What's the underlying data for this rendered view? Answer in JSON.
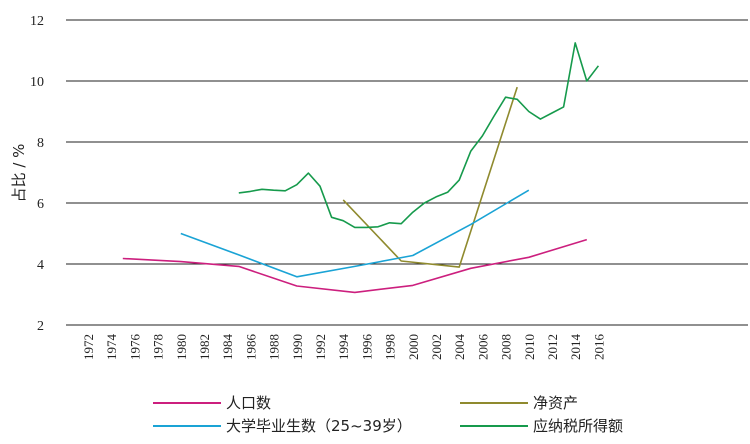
{
  "chart_data": {
    "type": "line",
    "title": "",
    "ylabel": "占比 / %",
    "xlabel": "",
    "ylim": [
      2,
      12
    ],
    "yticks": [
      2,
      4,
      6,
      8,
      10,
      12
    ],
    "xlim": [
      1972,
      2017
    ],
    "xticks": [
      "1972",
      "1974",
      "1976",
      "1978",
      "1980",
      "1982",
      "1984",
      "1986",
      "1988",
      "1990",
      "1992",
      "1994",
      "1996",
      "1998",
      "2000",
      "2002",
      "2004",
      "2006",
      "2008",
      "2010",
      "2012",
      "2014",
      "2016"
    ],
    "grid": "horizontal",
    "legend_position": "bottom",
    "series": [
      {
        "name": "人口数",
        "color": "#cc1f7e",
        "points": [
          [
            1975,
            4.18
          ],
          [
            1980,
            4.08
          ],
          [
            1985,
            3.92
          ],
          [
            1990,
            3.28
          ],
          [
            1995,
            3.07
          ],
          [
            2000,
            3.3
          ],
          [
            2005,
            3.86
          ],
          [
            2010,
            4.22
          ],
          [
            2015,
            4.8
          ]
        ]
      },
      {
        "name": "净资产",
        "color": "#8f8a2e",
        "points": [
          [
            1994,
            6.1
          ],
          [
            1999,
            4.1
          ],
          [
            2004,
            3.9
          ],
          [
            2009,
            9.8
          ]
        ]
      },
      {
        "name": "大学毕业生数（25~39岁）",
        "color": "#1aa3d5",
        "points": [
          [
            1980,
            5.0
          ],
          [
            1985,
            4.3
          ],
          [
            1990,
            3.58
          ],
          [
            1995,
            3.92
          ],
          [
            2000,
            4.28
          ],
          [
            2005,
            5.3
          ],
          [
            2010,
            6.42
          ]
        ]
      },
      {
        "name": "应纳税所得额",
        "color": "#169a4c",
        "points": [
          [
            1985,
            6.33
          ],
          [
            1986,
            6.38
          ],
          [
            1987,
            6.45
          ],
          [
            1988,
            6.42
          ],
          [
            1989,
            6.4
          ],
          [
            1990,
            6.6
          ],
          [
            1991,
            6.98
          ],
          [
            1992,
            6.55
          ],
          [
            1993,
            5.53
          ],
          [
            1994,
            5.42
          ],
          [
            1995,
            5.2
          ],
          [
            1996,
            5.2
          ],
          [
            1997,
            5.22
          ],
          [
            1998,
            5.35
          ],
          [
            1999,
            5.32
          ],
          [
            2000,
            5.7
          ],
          [
            2001,
            6.0
          ],
          [
            2002,
            6.2
          ],
          [
            2003,
            6.35
          ],
          [
            2004,
            6.75
          ],
          [
            2005,
            7.7
          ],
          [
            2006,
            8.2
          ],
          [
            2007,
            8.85
          ],
          [
            2008,
            9.47
          ],
          [
            2009,
            9.4
          ],
          [
            2010,
            9.0
          ],
          [
            2011,
            8.75
          ],
          [
            2012,
            8.95
          ],
          [
            2013,
            9.15
          ],
          [
            2014,
            11.25
          ],
          [
            2015,
            10.0
          ],
          [
            2016,
            10.5
          ]
        ]
      }
    ]
  }
}
